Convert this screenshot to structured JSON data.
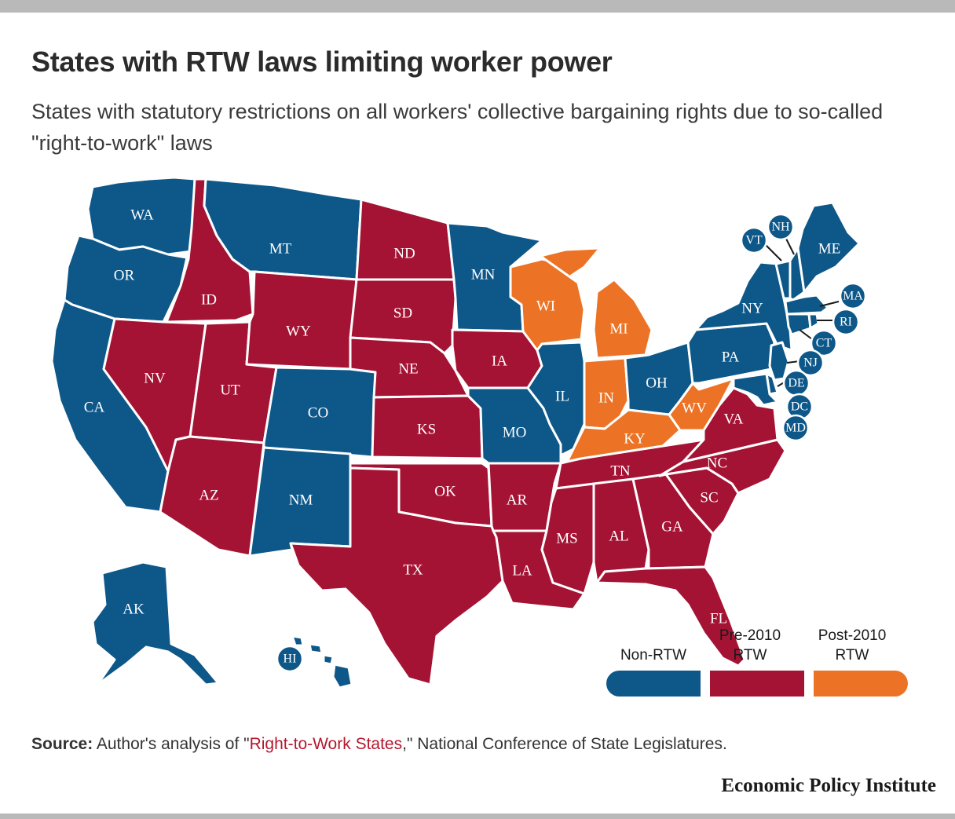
{
  "header": {
    "title": "States with RTW laws limiting worker power",
    "subtitle": "States with statutory restrictions on all workers' collective bargaining rights due to so-called \"right-to-work\" laws"
  },
  "colors": {
    "non_rtw": "#0d5789",
    "pre_2010_rtw": "#a51334",
    "post_2010_rtw": "#ec7325"
  },
  "states": {
    "WA": {
      "label": "WA",
      "status": "non_rtw"
    },
    "OR": {
      "label": "OR",
      "status": "non_rtw"
    },
    "CA": {
      "label": "CA",
      "status": "non_rtw"
    },
    "ID": {
      "label": "ID",
      "status": "pre_2010_rtw"
    },
    "NV": {
      "label": "NV",
      "status": "pre_2010_rtw"
    },
    "UT": {
      "label": "UT",
      "status": "pre_2010_rtw"
    },
    "AZ": {
      "label": "AZ",
      "status": "pre_2010_rtw"
    },
    "MT": {
      "label": "MT",
      "status": "non_rtw"
    },
    "WY": {
      "label": "WY",
      "status": "pre_2010_rtw"
    },
    "CO": {
      "label": "CO",
      "status": "non_rtw"
    },
    "NM": {
      "label": "NM",
      "status": "non_rtw"
    },
    "ND": {
      "label": "ND",
      "status": "pre_2010_rtw"
    },
    "SD": {
      "label": "SD",
      "status": "pre_2010_rtw"
    },
    "NE": {
      "label": "NE",
      "status": "pre_2010_rtw"
    },
    "KS": {
      "label": "KS",
      "status": "pre_2010_rtw"
    },
    "OK": {
      "label": "OK",
      "status": "pre_2010_rtw"
    },
    "TX": {
      "label": "TX",
      "status": "pre_2010_rtw"
    },
    "MN": {
      "label": "MN",
      "status": "non_rtw"
    },
    "IA": {
      "label": "IA",
      "status": "pre_2010_rtw"
    },
    "MO": {
      "label": "MO",
      "status": "non_rtw"
    },
    "AR": {
      "label": "AR",
      "status": "pre_2010_rtw"
    },
    "LA": {
      "label": "LA",
      "status": "pre_2010_rtw"
    },
    "WI": {
      "label": "WI",
      "status": "post_2010_rtw"
    },
    "IL": {
      "label": "IL",
      "status": "non_rtw"
    },
    "MI": {
      "label": "MI",
      "status": "post_2010_rtw"
    },
    "IN": {
      "label": "IN",
      "status": "post_2010_rtw"
    },
    "OH": {
      "label": "OH",
      "status": "non_rtw"
    },
    "KY": {
      "label": "KY",
      "status": "post_2010_rtw"
    },
    "WV": {
      "label": "WV",
      "status": "post_2010_rtw"
    },
    "TN": {
      "label": "TN",
      "status": "pre_2010_rtw"
    },
    "MS": {
      "label": "MS",
      "status": "pre_2010_rtw"
    },
    "AL": {
      "label": "AL",
      "status": "pre_2010_rtw"
    },
    "GA": {
      "label": "GA",
      "status": "pre_2010_rtw"
    },
    "FL": {
      "label": "FL",
      "status": "pre_2010_rtw"
    },
    "SC": {
      "label": "SC",
      "status": "pre_2010_rtw"
    },
    "NC": {
      "label": "NC",
      "status": "pre_2010_rtw"
    },
    "VA": {
      "label": "VA",
      "status": "pre_2010_rtw"
    },
    "PA": {
      "label": "PA",
      "status": "non_rtw"
    },
    "NY": {
      "label": "NY",
      "status": "non_rtw"
    },
    "ME": {
      "label": "ME",
      "status": "non_rtw"
    },
    "VT": {
      "label": "VT",
      "status": "non_rtw"
    },
    "NH": {
      "label": "NH",
      "status": "non_rtw"
    },
    "MA": {
      "label": "MA",
      "status": "non_rtw"
    },
    "RI": {
      "label": "RI",
      "status": "non_rtw"
    },
    "CT": {
      "label": "CT",
      "status": "non_rtw"
    },
    "NJ": {
      "label": "NJ",
      "status": "non_rtw"
    },
    "DE": {
      "label": "DE",
      "status": "non_rtw"
    },
    "DC": {
      "label": "DC",
      "status": "non_rtw"
    },
    "MD": {
      "label": "MD",
      "status": "non_rtw"
    },
    "AK": {
      "label": "AK",
      "status": "non_rtw"
    },
    "HI": {
      "label": "HI",
      "status": "non_rtw"
    }
  },
  "legend": {
    "non_rtw": "Non-RTW",
    "pre_2010_line1": "Pre-2010",
    "pre_2010_line2": "RTW",
    "post_2010_line1": "Post-2010",
    "post_2010_line2": "RTW"
  },
  "footer": {
    "source_prefix": "Source:",
    "source_text_1": " Author's analysis of \"",
    "source_link": "Right-to-Work States",
    "source_text_2": ",\" National Conference of State Legislatures.",
    "brand": "Economic Policy Institute"
  }
}
